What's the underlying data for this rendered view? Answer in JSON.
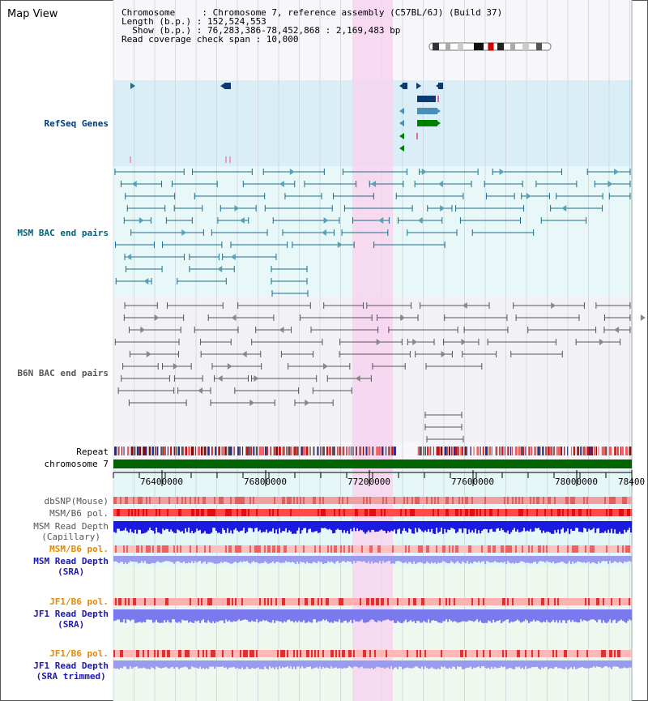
{
  "header": {
    "title": "Map View",
    "chromosome_line": "Chromosome     : Chromosome 7, reference assembly (C57BL/6J) (Build 37)",
    "length_line": "Length (b.p.) : 152,524,553",
    "show_line": "  Show (b.p.) : 76,283,386-78,452,868 : 2,169,483 bp",
    "coverage_line": "Read coverage check span : 10,000"
  },
  "tracks": {
    "refseq": "RefSeq Genes",
    "msm_bac": "MSM BAC end pairs",
    "b6n_bac": "B6N BAC end pairs",
    "repeat": "Repeat",
    "chromosome": "chromosome 7",
    "dbsnp": "dbSNP(Mouse)",
    "msm_b6_pol": "MSM/B6 pol.",
    "msm_depth_cap_1": "MSM Read Depth",
    "msm_depth_cap_2": "(Capillary)",
    "msm_b6_pol_sra": "MSM/B6 pol.",
    "msm_depth_sra_1": "MSM Read Depth",
    "msm_depth_sra_2": "(SRA)",
    "jf1_b6_pol": "JF1/B6 pol.",
    "jf1_depth_sra_1": "JF1 Read Depth",
    "jf1_depth_sra_2": "(SRA)",
    "jf1_b6_pol_trim": "JF1/B6 pol.",
    "jf1_depth_trim_1": "JF1 Read Depth",
    "jf1_depth_trim_2": "(SRA trimmed)"
  },
  "axis": {
    "ticks": [
      "76400000",
      "76800000",
      "77200000",
      "77600000",
      "78000000",
      "78400"
    ]
  },
  "colors": {
    "refseq_bg": "#d9eef7",
    "msm_bg": "#e8f8f8",
    "highlight": "#f7d5ee",
    "msm_label": "#003a7a",
    "msm_bac_label": "#00637a",
    "b6n_label": "#555555",
    "orange_label": "#e58a00",
    "blue_label": "#1a1ab0",
    "chrom_bar": "#006400"
  }
}
